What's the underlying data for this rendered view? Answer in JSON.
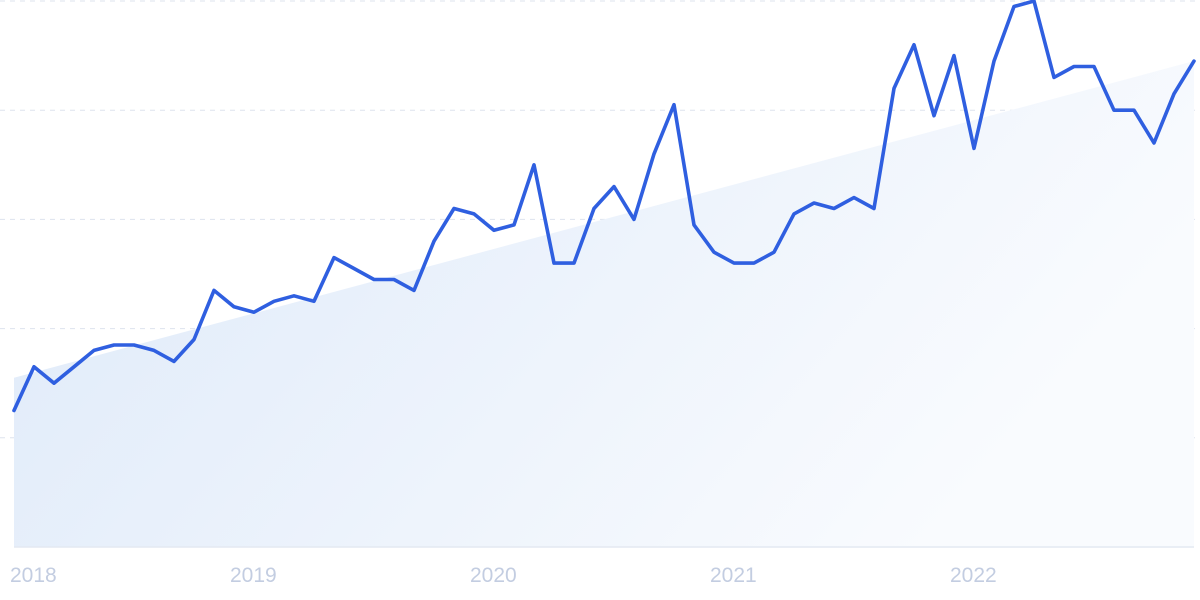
{
  "chart_data": {
    "type": "line",
    "title": "",
    "xlabel": "",
    "ylabel": "",
    "x_ticks": [
      "2018",
      "2019",
      "2020",
      "2021",
      "2022"
    ],
    "grid": true,
    "legend": "none",
    "ylim": [
      0,
      100
    ],
    "colors": {
      "line": "#2f5fe0",
      "trend_fill_top": "#dfeaf9",
      "grid": "#dde3ee",
      "tick_text": "#c3cde1"
    },
    "trend": {
      "start": 31,
      "end": 89
    },
    "series": [
      {
        "name": "",
        "values": [
          25,
          33,
          30,
          33,
          36,
          37,
          37,
          36,
          34,
          38,
          47,
          44,
          43,
          45,
          46,
          45,
          53,
          51,
          49,
          49,
          47,
          56,
          62,
          61,
          58,
          59,
          70,
          52,
          52,
          62,
          66,
          60,
          72,
          81,
          59,
          54,
          52,
          52,
          54,
          61,
          63,
          62,
          64,
          62,
          84,
          92,
          79,
          90,
          73,
          89,
          99,
          100,
          86,
          88,
          88,
          80,
          80,
          74,
          83,
          89
        ]
      }
    ]
  }
}
